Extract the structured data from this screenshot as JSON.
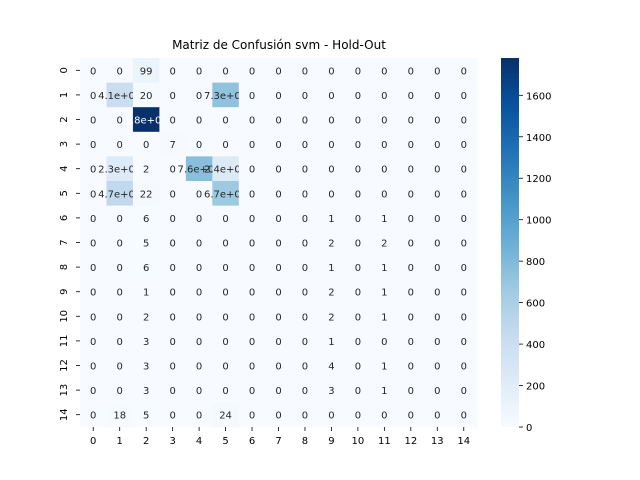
{
  "chart_data": {
    "type": "heatmap",
    "title": "Matriz de Confusión svm - Hold-Out",
    "xlabel": "",
    "ylabel": "",
    "x_labels": [
      "0",
      "1",
      "2",
      "3",
      "4",
      "5",
      "6",
      "7",
      "8",
      "9",
      "10",
      "11",
      "12",
      "13",
      "14"
    ],
    "y_labels": [
      "0",
      "1",
      "2",
      "3",
      "4",
      "5",
      "6",
      "7",
      "8",
      "9",
      "10",
      "11",
      "12",
      "13",
      "14"
    ],
    "values": [
      [
        0,
        0,
        99,
        0,
        0,
        0,
        0,
        0,
        0,
        0,
        0,
        0,
        0,
        0,
        0
      ],
      [
        0,
        410,
        20,
        0,
        0,
        730,
        0,
        0,
        0,
        0,
        0,
        0,
        0,
        0,
        0
      ],
      [
        0,
        0,
        1780,
        0,
        0,
        0,
        0,
        0,
        0,
        0,
        0,
        0,
        0,
        0,
        0
      ],
      [
        0,
        0,
        0,
        7,
        0,
        0,
        0,
        0,
        0,
        0,
        0,
        0,
        0,
        0,
        0
      ],
      [
        0,
        230,
        2,
        0,
        760,
        240,
        0,
        0,
        0,
        0,
        0,
        0,
        0,
        0,
        0
      ],
      [
        0,
        470,
        22,
        0,
        0,
        670,
        0,
        0,
        0,
        0,
        0,
        0,
        0,
        0,
        0
      ],
      [
        0,
        0,
        6,
        0,
        0,
        0,
        0,
        0,
        0,
        1,
        0,
        1,
        0,
        0,
        0
      ],
      [
        0,
        0,
        5,
        0,
        0,
        0,
        0,
        0,
        0,
        2,
        0,
        2,
        0,
        0,
        0
      ],
      [
        0,
        0,
        6,
        0,
        0,
        0,
        0,
        0,
        0,
        1,
        0,
        1,
        0,
        0,
        0
      ],
      [
        0,
        0,
        1,
        0,
        0,
        0,
        0,
        0,
        0,
        2,
        0,
        1,
        0,
        0,
        0
      ],
      [
        0,
        0,
        2,
        0,
        0,
        0,
        0,
        0,
        0,
        2,
        0,
        1,
        0,
        0,
        0
      ],
      [
        0,
        0,
        3,
        0,
        0,
        0,
        0,
        0,
        0,
        1,
        0,
        0,
        0,
        0,
        0
      ],
      [
        0,
        0,
        3,
        0,
        0,
        0,
        0,
        0,
        0,
        4,
        0,
        1,
        0,
        0,
        0
      ],
      [
        0,
        0,
        3,
        0,
        0,
        0,
        0,
        0,
        0,
        3,
        0,
        1,
        0,
        0,
        0
      ],
      [
        0,
        18,
        5,
        0,
        0,
        24,
        0,
        0,
        0,
        0,
        0,
        0,
        0,
        0,
        0
      ]
    ],
    "cell_labels": [
      [
        "0",
        "0",
        "99",
        "0",
        "0",
        "0",
        "0",
        "0",
        "0",
        "0",
        "0",
        "0",
        "0",
        "0",
        "0"
      ],
      [
        "0",
        "4.1e+02",
        "20",
        "0",
        "0",
        "7.3e+02",
        "0",
        "0",
        "0",
        "0",
        "0",
        "0",
        "0",
        "0",
        "0"
      ],
      [
        "0",
        "0",
        "1.8e+03",
        "0",
        "0",
        "0",
        "0",
        "0",
        "0",
        "0",
        "0",
        "0",
        "0",
        "0",
        "0"
      ],
      [
        "0",
        "0",
        "0",
        "7",
        "0",
        "0",
        "0",
        "0",
        "0",
        "0",
        "0",
        "0",
        "0",
        "0",
        "0"
      ],
      [
        "0",
        "2.3e+02",
        "2",
        "0",
        "7.6e+02",
        "2.4e+02",
        "0",
        "0",
        "0",
        "0",
        "0",
        "0",
        "0",
        "0",
        "0"
      ],
      [
        "0",
        "4.7e+02",
        "22",
        "0",
        "0",
        "6.7e+02",
        "0",
        "0",
        "0",
        "0",
        "0",
        "0",
        "0",
        "0",
        "0"
      ],
      [
        "0",
        "0",
        "6",
        "0",
        "0",
        "0",
        "0",
        "0",
        "0",
        "1",
        "0",
        "1",
        "0",
        "0",
        "0"
      ],
      [
        "0",
        "0",
        "5",
        "0",
        "0",
        "0",
        "0",
        "0",
        "0",
        "2",
        "0",
        "2",
        "0",
        "0",
        "0"
      ],
      [
        "0",
        "0",
        "6",
        "0",
        "0",
        "0",
        "0",
        "0",
        "0",
        "1",
        "0",
        "1",
        "0",
        "0",
        "0"
      ],
      [
        "0",
        "0",
        "1",
        "0",
        "0",
        "0",
        "0",
        "0",
        "0",
        "2",
        "0",
        "1",
        "0",
        "0",
        "0"
      ],
      [
        "0",
        "0",
        "2",
        "0",
        "0",
        "0",
        "0",
        "0",
        "0",
        "2",
        "0",
        "1",
        "0",
        "0",
        "0"
      ],
      [
        "0",
        "0",
        "3",
        "0",
        "0",
        "0",
        "0",
        "0",
        "0",
        "1",
        "0",
        "0",
        "0",
        "0",
        "0"
      ],
      [
        "0",
        "0",
        "3",
        "0",
        "0",
        "0",
        "0",
        "0",
        "0",
        "4",
        "0",
        "1",
        "0",
        "0",
        "0"
      ],
      [
        "0",
        "0",
        "3",
        "0",
        "0",
        "0",
        "0",
        "0",
        "0",
        "3",
        "0",
        "1",
        "0",
        "0",
        "0"
      ],
      [
        "0",
        "18",
        "5",
        "0",
        "0",
        "24",
        "0",
        "0",
        "0",
        "0",
        "0",
        "0",
        "0",
        "0",
        "0"
      ]
    ],
    "colorbar": {
      "range": [
        0,
        1780
      ],
      "ticks": [
        0,
        200,
        400,
        600,
        800,
        1000,
        1200,
        1400,
        1600
      ],
      "colormap": "Blues"
    }
  }
}
